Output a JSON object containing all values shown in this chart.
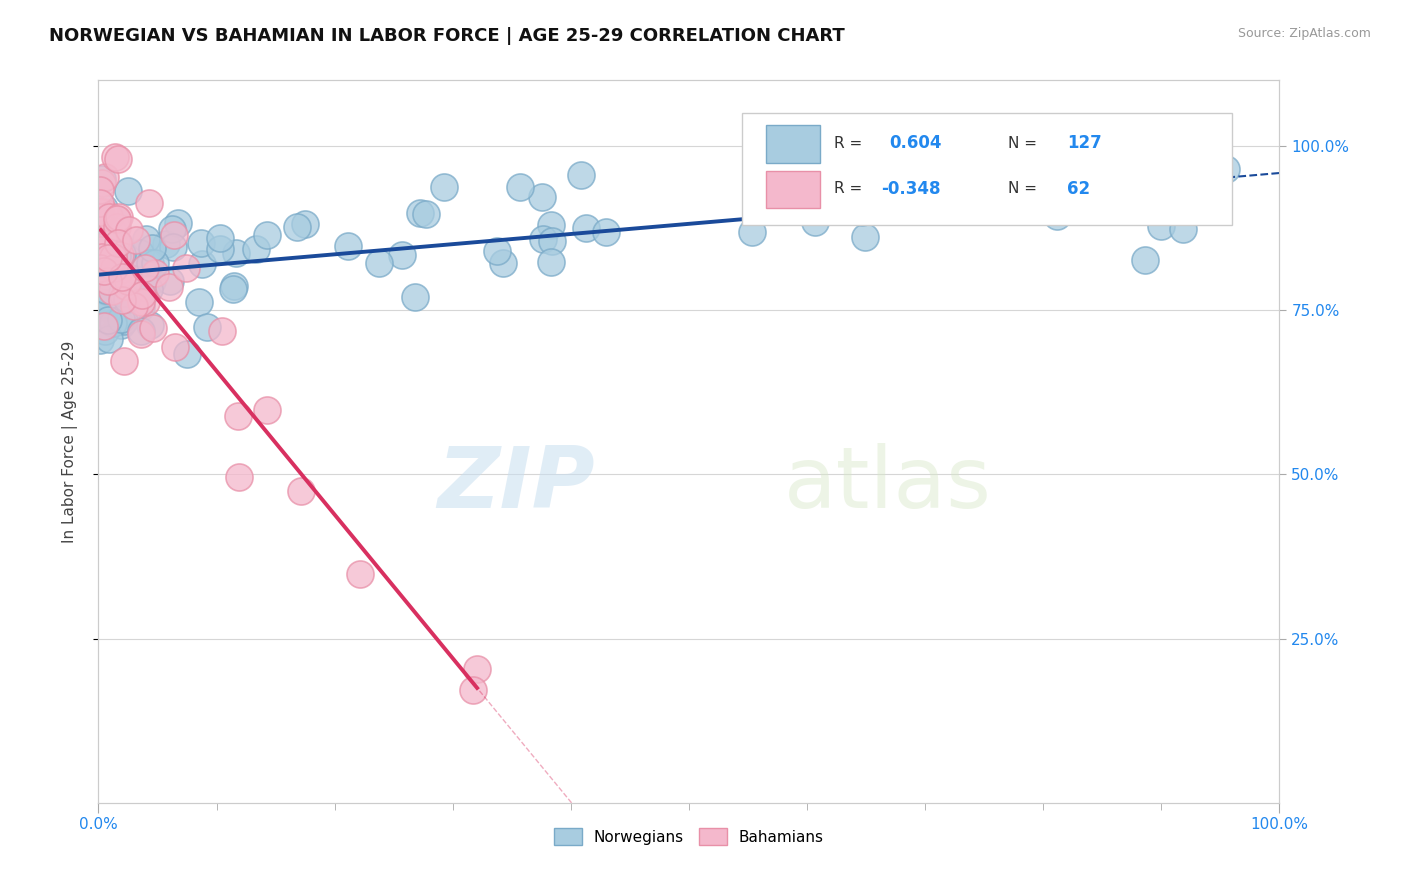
{
  "title": "NORWEGIAN VS BAHAMIAN IN LABOR FORCE | AGE 25-29 CORRELATION CHART",
  "source": "Source: ZipAtlas.com",
  "ylabel": "In Labor Force | Age 25-29",
  "norwegian_color": "#a8cce0",
  "bahamian_color": "#f4b8cc",
  "norwegian_edge": "#7aaac8",
  "bahamian_edge": "#e890a8",
  "trend_norwegian_color": "#1a4a9a",
  "trend_bahamian_color": "#d83060",
  "background_color": "#ffffff",
  "watermark_zip": "ZIP",
  "watermark_atlas": "atlas",
  "title_fontsize": 13,
  "norwegian_R": 0.604,
  "norwegian_N": 127,
  "bahamian_R": -0.348,
  "bahamian_N": 62
}
